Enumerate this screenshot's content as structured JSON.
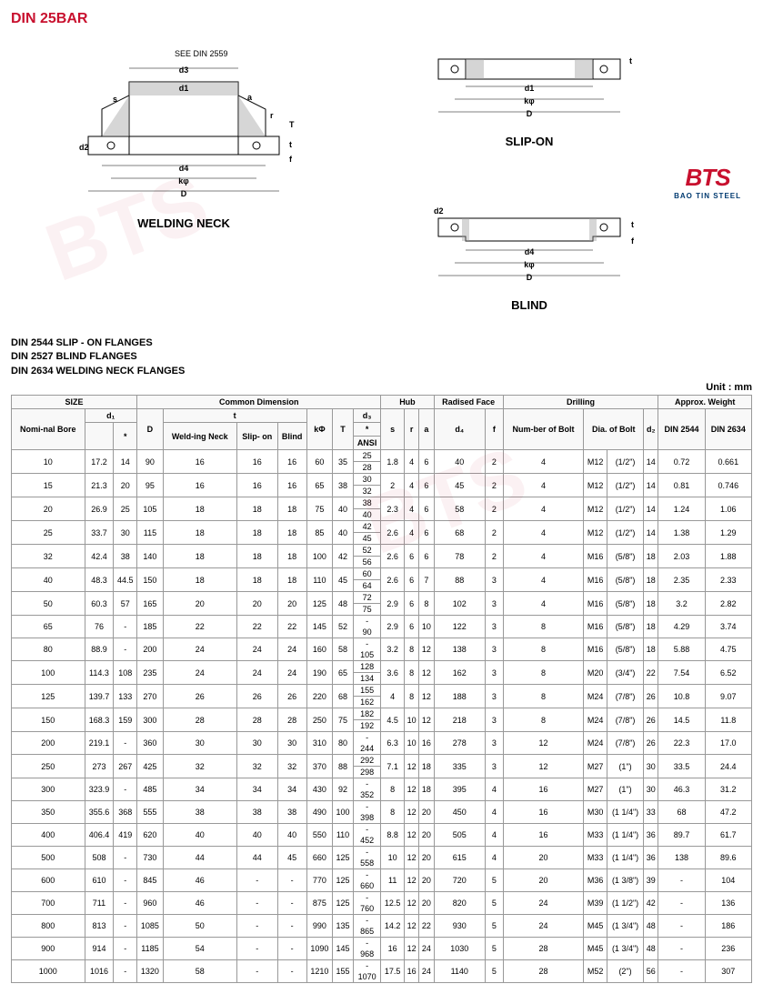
{
  "title": "DIN 25BAR",
  "logo": {
    "main": "BTS",
    "sub": "BAO TIN STEEL"
  },
  "diagrams": {
    "wn": "WELDING NECK",
    "so": "SLIP-ON",
    "bl": "BLIND",
    "see": "SEE DIN 2559"
  },
  "standards": [
    "DIN 2544 SLIP - ON FLANGES",
    "DIN 2527 BLIND FLANGES",
    "DIN 2634 WELDING NECK FLANGES"
  ],
  "unit": "Unit : mm",
  "headers": {
    "size": "SIZE",
    "common": "Common Dimension",
    "hub": "Hub",
    "raised": "Radised Face",
    "drilling": "Drilling",
    "weight": "Approx. Weight",
    "nominal": "Nomi-nal Bore",
    "d1": "d₁",
    "star": "*",
    "D": "D",
    "t": "t",
    "wn": "Weld-ing Neck",
    "so": "Slip- on",
    "bl": "Blind",
    "kphi": "kΦ",
    "T": "T",
    "d3": "d₃",
    "ansi": "ANSI",
    "s": "s",
    "r": "r",
    "a": "a",
    "d4": "d₄",
    "f": "f",
    "numbolt": "Num-ber of Bolt",
    "diabolt": "Dia. of Bolt",
    "d2": "d₂",
    "din2544": "DIN 2544",
    "din2634": "DIN 2634"
  },
  "rows": [
    {
      "nb": "10",
      "d1": "17.2",
      "star": "14",
      "D": "90",
      "twn": "16",
      "tso": "16",
      "tbl": "16",
      "kphi": "60",
      "T": "35",
      "d3a": "25",
      "d3b": "28",
      "s": "1.8",
      "r": "4",
      "a": "6",
      "d4": "40",
      "f": "2",
      "nbolt": "4",
      "dbolt": "M12",
      "dboltin": "(1/2\")",
      "d2": "14",
      "w1": "0.72",
      "w2": "0.661"
    },
    {
      "nb": "15",
      "d1": "21.3",
      "star": "20",
      "D": "95",
      "twn": "16",
      "tso": "16",
      "tbl": "16",
      "kphi": "65",
      "T": "38",
      "d3a": "30",
      "d3b": "32",
      "s": "2",
      "r": "4",
      "a": "6",
      "d4": "45",
      "f": "2",
      "nbolt": "4",
      "dbolt": "M12",
      "dboltin": "(1/2\")",
      "d2": "14",
      "w1": "0.81",
      "w2": "0.746"
    },
    {
      "nb": "20",
      "d1": "26.9",
      "star": "25",
      "D": "105",
      "twn": "18",
      "tso": "18",
      "tbl": "18",
      "kphi": "75",
      "T": "40",
      "d3a": "38",
      "d3b": "40",
      "s": "2.3",
      "r": "4",
      "a": "6",
      "d4": "58",
      "f": "2",
      "nbolt": "4",
      "dbolt": "M12",
      "dboltin": "(1/2\")",
      "d2": "14",
      "w1": "1.24",
      "w2": "1.06"
    },
    {
      "nb": "25",
      "d1": "33.7",
      "star": "30",
      "D": "115",
      "twn": "18",
      "tso": "18",
      "tbl": "18",
      "kphi": "85",
      "T": "40",
      "d3a": "42",
      "d3b": "45",
      "s": "2.6",
      "r": "4",
      "a": "6",
      "d4": "68",
      "f": "2",
      "nbolt": "4",
      "dbolt": "M12",
      "dboltin": "(1/2\")",
      "d2": "14",
      "w1": "1.38",
      "w2": "1.29"
    },
    {
      "nb": "32",
      "d1": "42.4",
      "star": "38",
      "D": "140",
      "twn": "18",
      "tso": "18",
      "tbl": "18",
      "kphi": "100",
      "T": "42",
      "d3a": "52",
      "d3b": "56",
      "s": "2.6",
      "r": "6",
      "a": "6",
      "d4": "78",
      "f": "2",
      "nbolt": "4",
      "dbolt": "M16",
      "dboltin": "(5/8\")",
      "d2": "18",
      "w1": "2.03",
      "w2": "1.88"
    },
    {
      "nb": "40",
      "d1": "48.3",
      "star": "44.5",
      "D": "150",
      "twn": "18",
      "tso": "18",
      "tbl": "18",
      "kphi": "110",
      "T": "45",
      "d3a": "60",
      "d3b": "64",
      "s": "2.6",
      "r": "6",
      "a": "7",
      "d4": "88",
      "f": "3",
      "nbolt": "4",
      "dbolt": "M16",
      "dboltin": "(5/8\")",
      "d2": "18",
      "w1": "2.35",
      "w2": "2.33"
    },
    {
      "nb": "50",
      "d1": "60.3",
      "star": "57",
      "D": "165",
      "twn": "20",
      "tso": "20",
      "tbl": "20",
      "kphi": "125",
      "T": "48",
      "d3a": "72",
      "d3b": "75",
      "s": "2.9",
      "r": "6",
      "a": "8",
      "d4": "102",
      "f": "3",
      "nbolt": "4",
      "dbolt": "M16",
      "dboltin": "(5/8\")",
      "d2": "18",
      "w1": "3.2",
      "w2": "2.82"
    },
    {
      "nb": "65",
      "d1": "76",
      "star": "-",
      "D": "185",
      "twn": "22",
      "tso": "22",
      "tbl": "22",
      "kphi": "145",
      "T": "52",
      "d3a": "",
      "d3b": "90",
      "s": "2.9",
      "r": "6",
      "a": "10",
      "d4": "122",
      "f": "3",
      "nbolt": "8",
      "dbolt": "M16",
      "dboltin": "(5/8\")",
      "d2": "18",
      "w1": "4.29",
      "w2": "3.74"
    },
    {
      "nb": "80",
      "d1": "88.9",
      "star": "-",
      "D": "200",
      "twn": "24",
      "tso": "24",
      "tbl": "24",
      "kphi": "160",
      "T": "58",
      "d3a": "",
      "d3b": "105",
      "s": "3.2",
      "r": "8",
      "a": "12",
      "d4": "138",
      "f": "3",
      "nbolt": "8",
      "dbolt": "M16",
      "dboltin": "(5/8\")",
      "d2": "18",
      "w1": "5.88",
      "w2": "4.75"
    },
    {
      "nb": "100",
      "d1": "114.3",
      "star": "108",
      "D": "235",
      "twn": "24",
      "tso": "24",
      "tbl": "24",
      "kphi": "190",
      "T": "65",
      "d3a": "128",
      "d3b": "134",
      "s": "3.6",
      "r": "8",
      "a": "12",
      "d4": "162",
      "f": "3",
      "nbolt": "8",
      "dbolt": "M20",
      "dboltin": "(3/4\")",
      "d2": "22",
      "w1": "7.54",
      "w2": "6.52"
    },
    {
      "nb": "125",
      "d1": "139.7",
      "star": "133",
      "D": "270",
      "twn": "26",
      "tso": "26",
      "tbl": "26",
      "kphi": "220",
      "T": "68",
      "d3a": "155",
      "d3b": "162",
      "s": "4",
      "r": "8",
      "a": "12",
      "d4": "188",
      "f": "3",
      "nbolt": "8",
      "dbolt": "M24",
      "dboltin": "(7/8\")",
      "d2": "26",
      "w1": "10.8",
      "w2": "9.07"
    },
    {
      "nb": "150",
      "d1": "168.3",
      "star": "159",
      "D": "300",
      "twn": "28",
      "tso": "28",
      "tbl": "28",
      "kphi": "250",
      "T": "75",
      "d3a": "182",
      "d3b": "192",
      "s": "4.5",
      "r": "10",
      "a": "12",
      "d4": "218",
      "f": "3",
      "nbolt": "8",
      "dbolt": "M24",
      "dboltin": "(7/8\")",
      "d2": "26",
      "w1": "14.5",
      "w2": "11.8"
    },
    {
      "nb": "200",
      "d1": "219.1",
      "star": "-",
      "D": "360",
      "twn": "30",
      "tso": "30",
      "tbl": "30",
      "kphi": "310",
      "T": "80",
      "d3a": "",
      "d3b": "244",
      "s": "6.3",
      "r": "10",
      "a": "16",
      "d4": "278",
      "f": "3",
      "nbolt": "12",
      "dbolt": "M24",
      "dboltin": "(7/8\")",
      "d2": "26",
      "w1": "22.3",
      "w2": "17.0"
    },
    {
      "nb": "250",
      "d1": "273",
      "star": "267",
      "D": "425",
      "twn": "32",
      "tso": "32",
      "tbl": "32",
      "kphi": "370",
      "T": "88",
      "d3a": "292",
      "d3b": "298",
      "s": "7.1",
      "r": "12",
      "a": "18",
      "d4": "335",
      "f": "3",
      "nbolt": "12",
      "dbolt": "M27",
      "dboltin": "(1\")",
      "d2": "30",
      "w1": "33.5",
      "w2": "24.4"
    },
    {
      "nb": "300",
      "d1": "323.9",
      "star": "-",
      "D": "485",
      "twn": "34",
      "tso": "34",
      "tbl": "34",
      "kphi": "430",
      "T": "92",
      "d3a": "",
      "d3b": "352",
      "s": "8",
      "r": "12",
      "a": "18",
      "d4": "395",
      "f": "4",
      "nbolt": "16",
      "dbolt": "M27",
      "dboltin": "(1\")",
      "d2": "30",
      "w1": "46.3",
      "w2": "31.2"
    },
    {
      "nb": "350",
      "d1": "355.6",
      "star": "368",
      "D": "555",
      "twn": "38",
      "tso": "38",
      "tbl": "38",
      "kphi": "490",
      "T": "100",
      "d3a": "",
      "d3b": "398",
      "s": "8",
      "r": "12",
      "a": "20",
      "d4": "450",
      "f": "4",
      "nbolt": "16",
      "dbolt": "M30",
      "dboltin": "(1 1/4\")",
      "d2": "33",
      "w1": "68",
      "w2": "47.2"
    },
    {
      "nb": "400",
      "d1": "406.4",
      "star": "419",
      "D": "620",
      "twn": "40",
      "tso": "40",
      "tbl": "40",
      "kphi": "550",
      "T": "110",
      "d3a": "",
      "d3b": "452",
      "s": "8.8",
      "r": "12",
      "a": "20",
      "d4": "505",
      "f": "4",
      "nbolt": "16",
      "dbolt": "M33",
      "dboltin": "(1 1/4\")",
      "d2": "36",
      "w1": "89.7",
      "w2": "61.7"
    },
    {
      "nb": "500",
      "d1": "508",
      "star": "-",
      "D": "730",
      "twn": "44",
      "tso": "44",
      "tbl": "45",
      "kphi": "660",
      "T": "125",
      "d3a": "",
      "d3b": "558",
      "s": "10",
      "r": "12",
      "a": "20",
      "d4": "615",
      "f": "4",
      "nbolt": "20",
      "dbolt": "M33",
      "dboltin": "(1 1/4\")",
      "d2": "36",
      "w1": "138",
      "w2": "89.6"
    },
    {
      "nb": "600",
      "d1": "610",
      "star": "-",
      "D": "845",
      "twn": "46",
      "tso": "-",
      "tbl": "-",
      "kphi": "770",
      "T": "125",
      "d3a": "",
      "d3b": "660",
      "s": "11",
      "r": "12",
      "a": "20",
      "d4": "720",
      "f": "5",
      "nbolt": "20",
      "dbolt": "M36",
      "dboltin": "(1 3/8\")",
      "d2": "39",
      "w1": "-",
      "w2": "104"
    },
    {
      "nb": "700",
      "d1": "711",
      "star": "-",
      "D": "960",
      "twn": "46",
      "tso": "-",
      "tbl": "-",
      "kphi": "875",
      "T": "125",
      "d3a": "",
      "d3b": "760",
      "s": "12.5",
      "r": "12",
      "a": "20",
      "d4": "820",
      "f": "5",
      "nbolt": "24",
      "dbolt": "M39",
      "dboltin": "(1 1/2\")",
      "d2": "42",
      "w1": "-",
      "w2": "136"
    },
    {
      "nb": "800",
      "d1": "813",
      "star": "-",
      "D": "1085",
      "twn": "50",
      "tso": "-",
      "tbl": "-",
      "kphi": "990",
      "T": "135",
      "d3a": "",
      "d3b": "865",
      "s": "14.2",
      "r": "12",
      "a": "22",
      "d4": "930",
      "f": "5",
      "nbolt": "24",
      "dbolt": "M45",
      "dboltin": "(1 3/4\")",
      "d2": "48",
      "w1": "-",
      "w2": "186"
    },
    {
      "nb": "900",
      "d1": "914",
      "star": "-",
      "D": "1185",
      "twn": "54",
      "tso": "-",
      "tbl": "-",
      "kphi": "1090",
      "T": "145",
      "d3a": "",
      "d3b": "968",
      "s": "16",
      "r": "12",
      "a": "24",
      "d4": "1030",
      "f": "5",
      "nbolt": "28",
      "dbolt": "M45",
      "dboltin": "(1 3/4\")",
      "d2": "48",
      "w1": "-",
      "w2": "236"
    },
    {
      "nb": "1000",
      "d1": "1016",
      "star": "-",
      "D": "1320",
      "twn": "58",
      "tso": "-",
      "tbl": "-",
      "kphi": "1210",
      "T": "155",
      "d3a": "",
      "d3b": "1070",
      "s": "17.5",
      "r": "16",
      "a": "24",
      "d4": "1140",
      "f": "5",
      "nbolt": "28",
      "dbolt": "M52",
      "dboltin": "(2\")",
      "d2": "56",
      "w1": "-",
      "w2": "307"
    }
  ]
}
